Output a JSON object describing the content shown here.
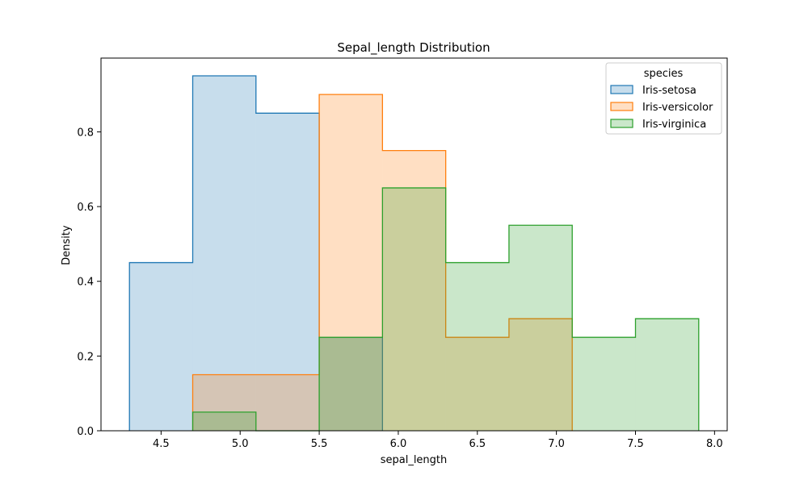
{
  "chart_data": {
    "type": "histogram",
    "title": "Sepal_length Distribution",
    "xlabel": "sepal_length",
    "ylabel": "Density",
    "xlim": [
      4.12,
      8.08
    ],
    "ylim": [
      0,
      0.9975
    ],
    "xticks": [
      4.5,
      5.0,
      5.5,
      6.0,
      6.5,
      7.0,
      7.5,
      8.0
    ],
    "xtick_labels": [
      "4.5",
      "5.0",
      "5.5",
      "6.0",
      "6.5",
      "7.0",
      "7.5",
      "8.0"
    ],
    "yticks": [
      0.0,
      0.2,
      0.4,
      0.6,
      0.8
    ],
    "ytick_labels": [
      "0.0",
      "0.2",
      "0.4",
      "0.6",
      "0.8"
    ],
    "bin_edges": [
      4.3,
      4.7,
      5.1,
      5.5,
      5.9,
      6.3,
      6.7,
      7.1,
      7.5,
      7.9
    ],
    "grid": false,
    "legend": {
      "title": "species",
      "position": "top-right"
    },
    "series": [
      {
        "name": "Iris-setosa",
        "color": "#1f77b4",
        "values": [
          0.45,
          0.95,
          0.85,
          0.25,
          0,
          0,
          0,
          0,
          0
        ]
      },
      {
        "name": "Iris-versicolor",
        "color": "#ff7f0e",
        "values": [
          0,
          0.15,
          0.15,
          0.9,
          0.75,
          0.25,
          0.3,
          0,
          0
        ]
      },
      {
        "name": "Iris-virginica",
        "color": "#2ca02c",
        "values": [
          0,
          0.05,
          0,
          0.25,
          0.65,
          0.45,
          0.55,
          0.25,
          0.3
        ]
      }
    ]
  }
}
